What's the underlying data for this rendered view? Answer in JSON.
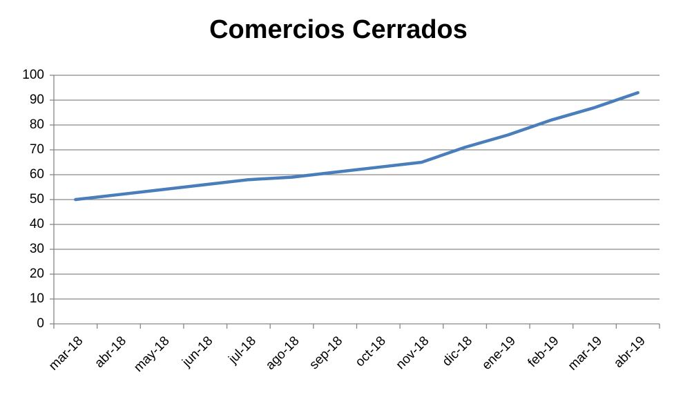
{
  "chart_data": {
    "type": "line",
    "title": "Comercios Cerrados",
    "categories": [
      "mar-18",
      "abr-18",
      "may-18",
      "jun-18",
      "jul-18",
      "ago-18",
      "sep-18",
      "oct-18",
      "nov-18",
      "dic-18",
      "ene-19",
      "feb-19",
      "mar-19",
      "abr-19"
    ],
    "values": [
      50,
      52,
      54,
      56,
      58,
      59,
      61,
      63,
      65,
      71,
      76,
      82,
      87,
      93
    ],
    "color": "#4a7ebb",
    "ylim": [
      0,
      100
    ],
    "yticks": [
      0,
      10,
      20,
      30,
      40,
      50,
      60,
      70,
      80,
      90,
      100
    ],
    "grid": true
  }
}
